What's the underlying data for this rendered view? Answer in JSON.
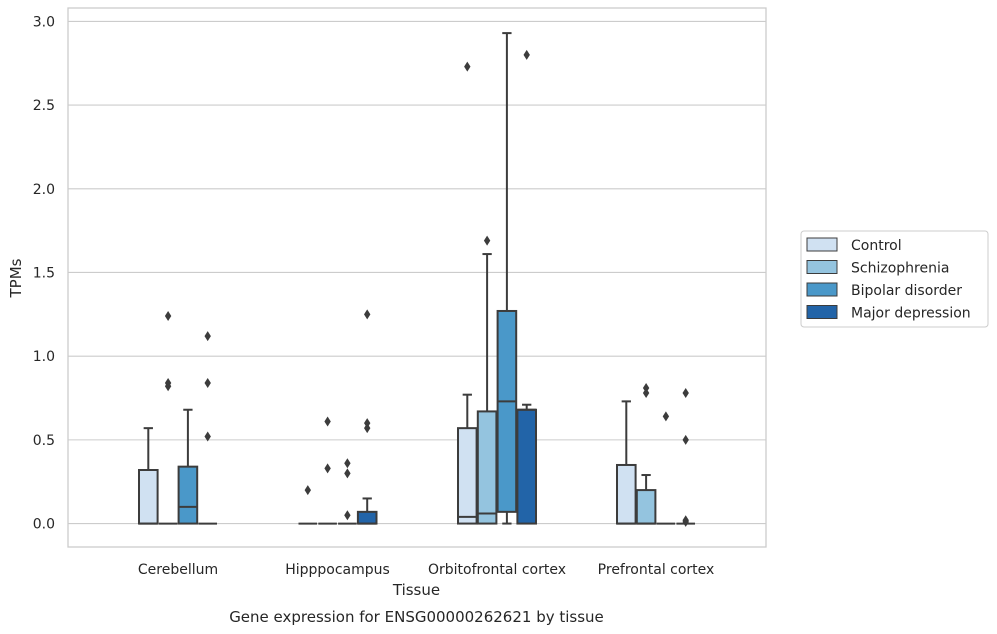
{
  "chart_data": {
    "type": "box",
    "title": "",
    "caption": "Gene expression for ENSG00000262621 by tissue",
    "xlabel": "Tissue",
    "ylabel": "TPMs",
    "ylim": [
      -0.14,
      3.08
    ],
    "yticks": [
      "0.0",
      "0.5",
      "1.0",
      "1.5",
      "2.0",
      "2.5",
      "3.0"
    ],
    "grid": true,
    "legend_position": "right",
    "categories": [
      "Cerebellum",
      "Hipppocampus",
      "Orbitofrontal cortex",
      "Prefrontal cortex"
    ],
    "series": [
      {
        "name": "Control",
        "color": "#d0e1f2",
        "boxes": [
          {
            "q1": 0.0,
            "median": 0.0,
            "q3": 0.32,
            "whisker_low": 0.0,
            "whisker_high": 0.57,
            "outliers": []
          },
          {
            "q1": 0.0,
            "median": 0.0,
            "q3": 0.0,
            "whisker_low": 0.0,
            "whisker_high": 0.0,
            "outliers": [
              0.2
            ]
          },
          {
            "q1": 0.0,
            "median": 0.04,
            "q3": 0.57,
            "whisker_low": 0.0,
            "whisker_high": 0.77,
            "outliers": [
              2.73
            ]
          },
          {
            "q1": 0.0,
            "median": 0.0,
            "q3": 0.35,
            "whisker_low": 0.0,
            "whisker_high": 0.73,
            "outliers": []
          }
        ]
      },
      {
        "name": "Schizophrenia",
        "color": "#94c4df",
        "boxes": [
          {
            "q1": 0.0,
            "median": 0.0,
            "q3": 0.0,
            "whisker_low": 0.0,
            "whisker_high": 0.0,
            "outliers": [
              0.82,
              0.84,
              1.24
            ]
          },
          {
            "q1": 0.0,
            "median": 0.0,
            "q3": 0.0,
            "whisker_low": 0.0,
            "whisker_high": 0.0,
            "outliers": [
              0.33,
              0.61
            ]
          },
          {
            "q1": 0.0,
            "median": 0.06,
            "q3": 0.67,
            "whisker_low": 0.0,
            "whisker_high": 1.61,
            "outliers": [
              1.69
            ]
          },
          {
            "q1": 0.0,
            "median": 0.0,
            "q3": 0.2,
            "whisker_low": 0.0,
            "whisker_high": 0.29,
            "outliers": [
              0.78,
              0.81
            ]
          }
        ]
      },
      {
        "name": "Bipolar disorder",
        "color": "#4a98c9",
        "boxes": [
          {
            "q1": 0.0,
            "median": 0.1,
            "q3": 0.34,
            "whisker_low": 0.0,
            "whisker_high": 0.68,
            "outliers": []
          },
          {
            "q1": 0.0,
            "median": 0.0,
            "q3": 0.0,
            "whisker_low": 0.0,
            "whisker_high": 0.0,
            "outliers": [
              0.05,
              0.3,
              0.36
            ]
          },
          {
            "q1": 0.07,
            "median": 0.73,
            "q3": 1.27,
            "whisker_low": 0.0,
            "whisker_high": 2.93,
            "outliers": []
          },
          {
            "q1": 0.0,
            "median": 0.0,
            "q3": 0.0,
            "whisker_low": 0.0,
            "whisker_high": 0.0,
            "outliers": [
              0.64
            ]
          }
        ]
      },
      {
        "name": "Major depression",
        "color": "#2264a8",
        "boxes": [
          {
            "q1": 0.0,
            "median": 0.0,
            "q3": 0.0,
            "whisker_low": 0.0,
            "whisker_high": 0.0,
            "outliers": [
              0.52,
              0.84,
              1.12
            ]
          },
          {
            "q1": 0.0,
            "median": 0.0,
            "q3": 0.07,
            "whisker_low": 0.0,
            "whisker_high": 0.15,
            "outliers": [
              0.57,
              0.6,
              1.25
            ]
          },
          {
            "q1": 0.0,
            "median": 0.68,
            "q3": 0.68,
            "whisker_low": 0.0,
            "whisker_high": 0.71,
            "outliers": [
              2.8
            ]
          },
          {
            "q1": 0.0,
            "median": 0.0,
            "q3": 0.0,
            "whisker_low": 0.0,
            "whisker_high": 0.0,
            "outliers": [
              0.01,
              0.02,
              0.5,
              0.78
            ]
          }
        ]
      }
    ]
  }
}
